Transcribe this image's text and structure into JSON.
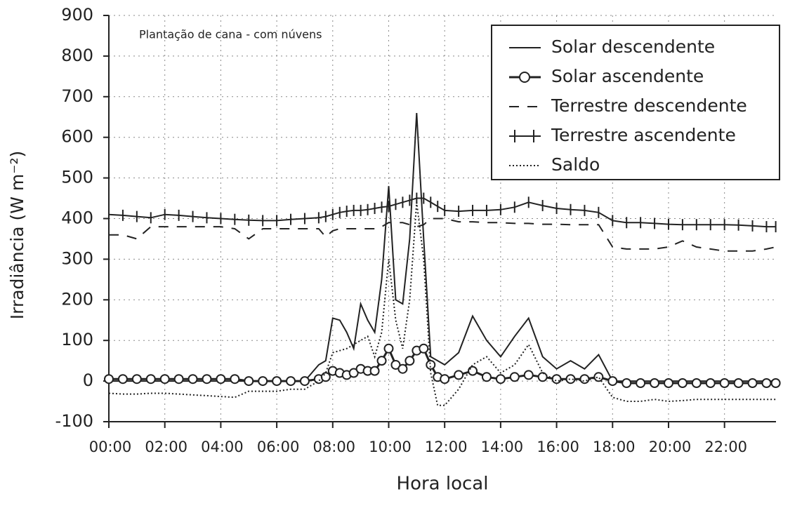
{
  "chart_data": {
    "type": "line",
    "annotation": "Plantação de cana - com núvens",
    "xlabel": "Hora local",
    "ylabel": "Irradiância (W m⁻²)",
    "xlim": [
      0,
      23.84
    ],
    "ylim": [
      -100,
      900
    ],
    "xticks": [
      {
        "value": 0,
        "label": "00:00"
      },
      {
        "value": 2,
        "label": "02:00"
      },
      {
        "value": 4,
        "label": "04:00"
      },
      {
        "value": 6,
        "label": "06:00"
      },
      {
        "value": 8,
        "label": "08:00"
      },
      {
        "value": 10,
        "label": "10:00"
      },
      {
        "value": 12,
        "label": "12:00"
      },
      {
        "value": 14,
        "label": "14:00"
      },
      {
        "value": 16,
        "label": "16:00"
      },
      {
        "value": 18,
        "label": "18:00"
      },
      {
        "value": 20,
        "label": "20:00"
      },
      {
        "value": 22,
        "label": "22:00"
      }
    ],
    "yticks": [
      -100,
      0,
      100,
      200,
      300,
      400,
      500,
      600,
      700,
      800,
      900
    ],
    "grid": true,
    "legend": "top-right",
    "x": [
      0,
      0.5,
      1,
      1.5,
      2,
      2.5,
      3,
      3.5,
      4,
      4.5,
      5,
      5.5,
      6,
      6.5,
      7,
      7.5,
      7.75,
      8,
      8.25,
      8.5,
      8.75,
      9,
      9.25,
      9.5,
      9.75,
      10,
      10.25,
      10.5,
      10.75,
      11,
      11.25,
      11.5,
      11.75,
      12,
      12.5,
      13,
      13.5,
      14,
      14.5,
      15,
      15.5,
      16,
      16.5,
      17,
      17.5,
      18,
      18.5,
      19,
      19.5,
      20,
      20.5,
      21,
      21.5,
      22,
      22.5,
      23,
      23.5,
      23.83
    ],
    "series": [
      {
        "name": "Solar descendente",
        "color": "#222",
        "style": "solid",
        "values": [
          0,
          0,
          0,
          0,
          0,
          0,
          0,
          0,
          0,
          0,
          0,
          0,
          0,
          0,
          0,
          40,
          50,
          155,
          150,
          120,
          80,
          190,
          150,
          120,
          250,
          480,
          200,
          190,
          350,
          660,
          350,
          60,
          50,
          40,
          70,
          160,
          100,
          60,
          110,
          155,
          60,
          30,
          50,
          30,
          65,
          0,
          0,
          0,
          0,
          0,
          0,
          0,
          0,
          0,
          0,
          0,
          0,
          0
        ]
      },
      {
        "name": "Solar ascendente",
        "color": "#222",
        "style": "circle",
        "values": [
          5,
          5,
          5,
          5,
          5,
          5,
          5,
          5,
          5,
          5,
          0,
          0,
          0,
          0,
          0,
          5,
          10,
          25,
          20,
          15,
          20,
          30,
          25,
          25,
          50,
          80,
          40,
          30,
          50,
          75,
          80,
          40,
          10,
          5,
          15,
          25,
          10,
          5,
          10,
          15,
          10,
          5,
          5,
          5,
          10,
          0,
          -5,
          -5,
          -5,
          -5,
          -5,
          -5,
          -5,
          -5,
          -5,
          -5,
          -5,
          -5
        ]
      },
      {
        "name": "Terrestre descendente",
        "color": "#222",
        "style": "dashed",
        "values": [
          360,
          360,
          350,
          380,
          380,
          380,
          380,
          380,
          380,
          375,
          350,
          375,
          375,
          375,
          375,
          375,
          355,
          370,
          375,
          375,
          375,
          375,
          375,
          375,
          380,
          390,
          390,
          390,
          385,
          380,
          385,
          400,
          400,
          400,
          392,
          392,
          390,
          390,
          388,
          388,
          386,
          386,
          385,
          385,
          385,
          330,
          325,
          325,
          325,
          330,
          345,
          330,
          325,
          320,
          320,
          320,
          325,
          330
        ]
      },
      {
        "name": "Terrestre ascendente",
        "color": "#222",
        "style": "cross",
        "values": [
          410,
          408,
          405,
          402,
          410,
          408,
          405,
          402,
          400,
          398,
          396,
          395,
          395,
          398,
          400,
          402,
          405,
          410,
          415,
          418,
          420,
          420,
          422,
          425,
          428,
          430,
          435,
          440,
          445,
          450,
          450,
          440,
          430,
          420,
          418,
          420,
          420,
          422,
          428,
          440,
          432,
          425,
          422,
          420,
          415,
          395,
          390,
          390,
          388,
          386,
          385,
          385,
          385,
          385,
          384,
          382,
          380,
          380
        ]
      },
      {
        "name": "Saldo",
        "color": "#222",
        "style": "dotted",
        "values": [
          -30,
          -32,
          -32,
          -30,
          -30,
          -32,
          -34,
          -36,
          -38,
          -40,
          -25,
          -25,
          -25,
          -20,
          -20,
          0,
          20,
          70,
          75,
          80,
          90,
          100,
          110,
          60,
          120,
          300,
          150,
          80,
          200,
          440,
          300,
          20,
          -60,
          -60,
          -20,
          40,
          60,
          20,
          40,
          90,
          20,
          0,
          5,
          0,
          10,
          -40,
          -50,
          -50,
          -45,
          -50,
          -48,
          -45,
          -45,
          -45,
          -45,
          -45,
          -45,
          -45
        ]
      }
    ]
  }
}
